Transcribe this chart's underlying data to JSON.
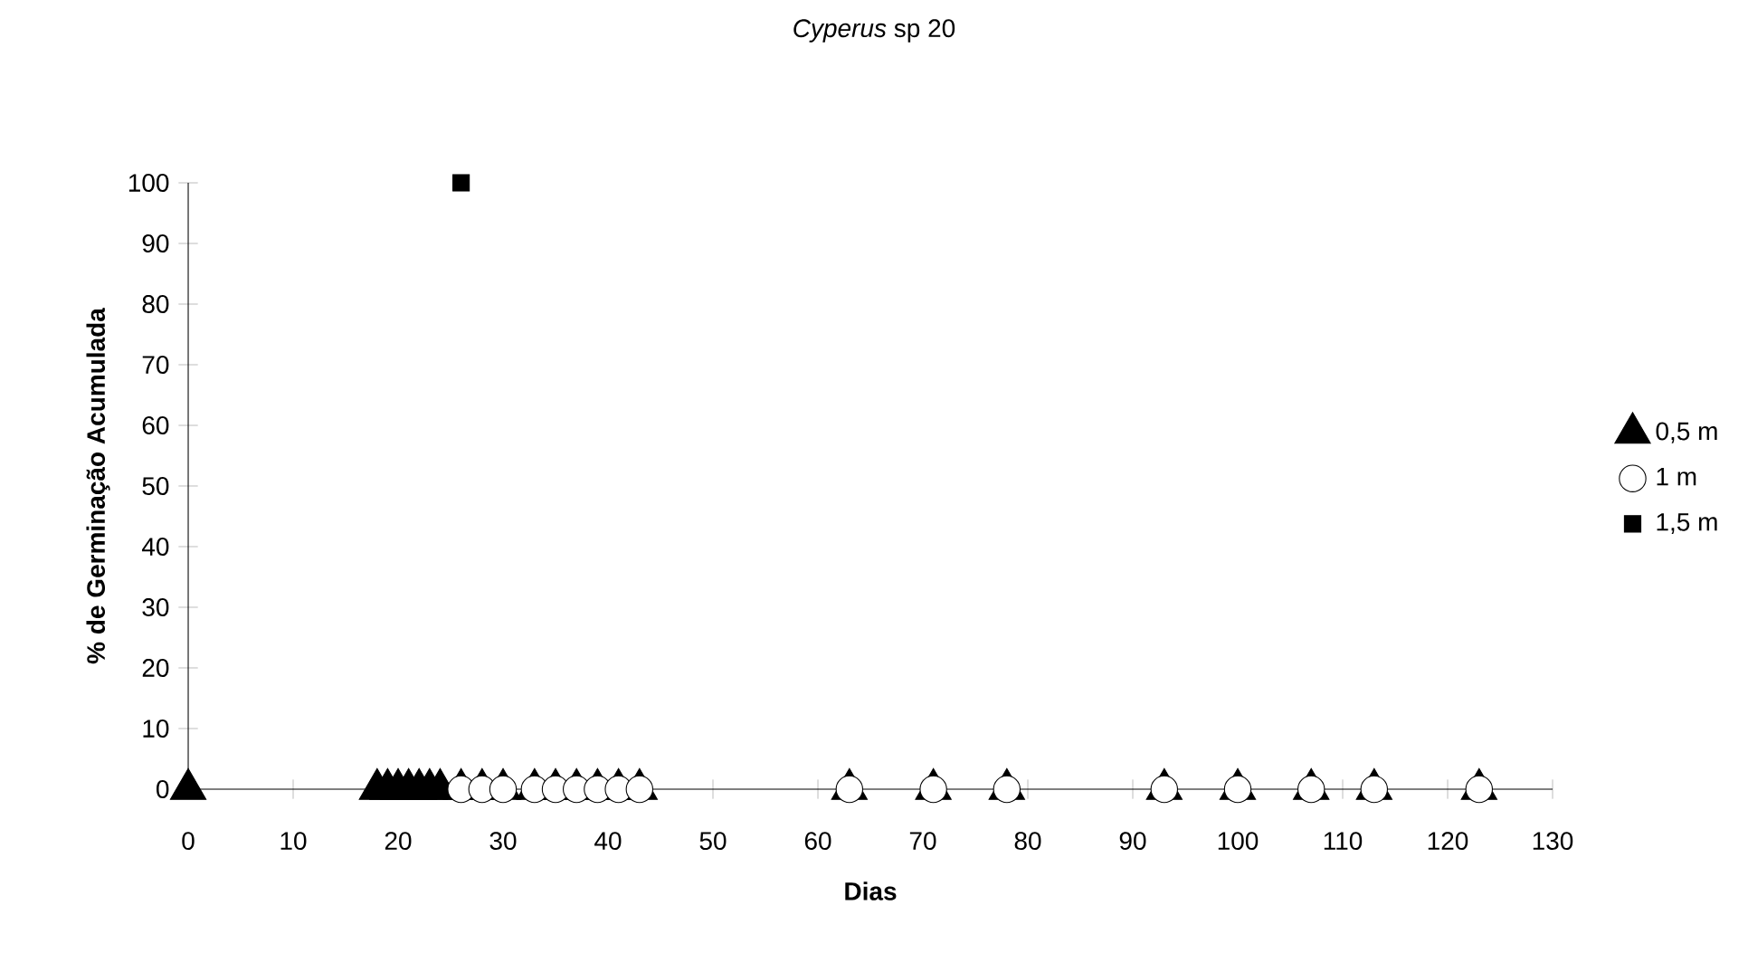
{
  "chart_data": {
    "type": "scatter",
    "title": "*Cyperus* sp 20",
    "xlabel": "Dias",
    "ylabel": "% de Germinação Acumulada",
    "xlim": [
      0,
      130
    ],
    "xticks": [
      0,
      10,
      20,
      30,
      40,
      50,
      60,
      70,
      80,
      90,
      100,
      110,
      120,
      130
    ],
    "ylim": [
      0,
      100
    ],
    "yticks": [
      0,
      10,
      20,
      30,
      40,
      50,
      60,
      70,
      80,
      90,
      100
    ],
    "grid": false,
    "legend": "right",
    "series": [
      {
        "name": "0,5 m",
        "color": "#000000",
        "marker": "triangle",
        "x": [
          0,
          18,
          19,
          20,
          21,
          22,
          23,
          24,
          26,
          28,
          30,
          33,
          35,
          37,
          39,
          41,
          43,
          63,
          71,
          78,
          93,
          100,
          107,
          113,
          123
        ],
        "values": [
          0,
          0,
          0,
          0,
          0,
          0,
          0,
          0,
          0,
          0,
          0,
          0,
          0,
          0,
          0,
          0,
          0,
          0,
          0,
          0,
          0,
          0,
          0,
          0,
          0
        ]
      },
      {
        "name": "1 m",
        "color": "#ffffff",
        "marker": "circle",
        "x": [
          26,
          28,
          30,
          33,
          35,
          37,
          39,
          41,
          43,
          63,
          71,
          78,
          93,
          100,
          107,
          113,
          123
        ],
        "values": [
          0,
          0,
          0,
          0,
          0,
          0,
          0,
          0,
          0,
          0,
          0,
          0,
          0,
          0,
          0,
          0,
          0
        ]
      },
      {
        "name": "1,5 m",
        "color": "#000000",
        "marker": "square",
        "x": [
          26
        ],
        "values": [
          100
        ]
      }
    ]
  }
}
